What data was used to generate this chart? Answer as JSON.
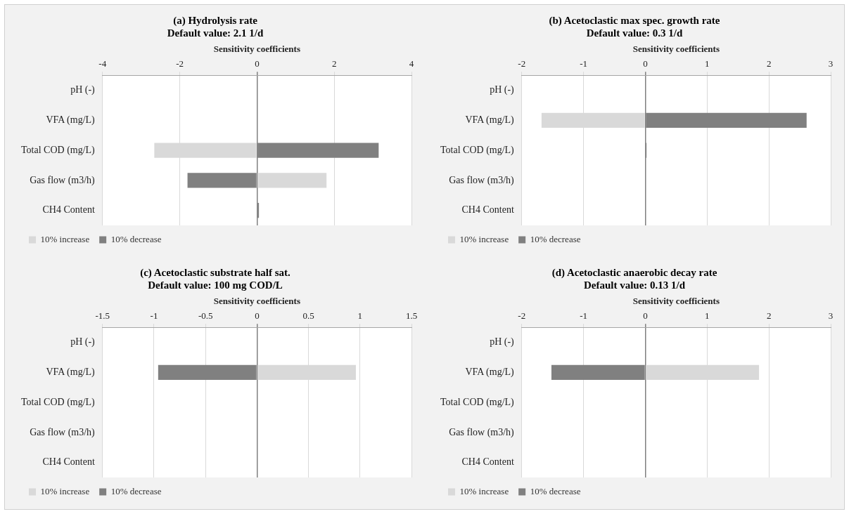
{
  "chart_data": [
    {
      "type": "bar",
      "orientation": "horizontal",
      "title": "(a) Hydrolysis rate",
      "subtitle": "Default value: 2.1 1/d",
      "xlabel": "Sensitivity coefficients",
      "categories": [
        "pH (-)",
        "VFA (mg/L)",
        "Total COD (mg/L)",
        "Gas flow (m3/h)",
        "CH4 Content"
      ],
      "xlim": [
        -4,
        4
      ],
      "xticks": [
        -4,
        -2,
        0,
        2,
        4
      ],
      "grid": "x",
      "legend": "bottom",
      "series": [
        {
          "name": "10% increase",
          "color": "#d9d9d9",
          "values": [
            0,
            0,
            -2.66,
            1.8,
            0
          ]
        },
        {
          "name": "10% decrease",
          "color": "#808080",
          "values": [
            0,
            0,
            3.15,
            -1.8,
            0.05
          ]
        }
      ]
    },
    {
      "type": "bar",
      "orientation": "horizontal",
      "title": "(b) Acetoclastic max spec. growth rate",
      "subtitle": "Default value: 0.3 1/d",
      "xlabel": "Sensitivity coefficients",
      "categories": [
        "pH (-)",
        "VFA (mg/L)",
        "Total COD (mg/L)",
        "Gas flow (m3/h)",
        "CH4 Content"
      ],
      "xlim": [
        -2,
        3
      ],
      "xticks": [
        -2,
        -1,
        0,
        1,
        2,
        3
      ],
      "grid": "x",
      "legend": "bottom",
      "series": [
        {
          "name": "10% increase",
          "color": "#d9d9d9",
          "values": [
            0,
            -1.68,
            0,
            0,
            0
          ]
        },
        {
          "name": "10% decrease",
          "color": "#808080",
          "values": [
            0,
            2.61,
            0.02,
            0,
            0
          ]
        }
      ]
    },
    {
      "type": "bar",
      "orientation": "horizontal",
      "title": "(c) Acetoclastic substrate half sat.",
      "subtitle": "Default value: 100 mg COD/L",
      "xlabel": "Sensitivity coefficients",
      "categories": [
        "pH (-)",
        "VFA (mg/L)",
        "Total COD (mg/L)",
        "Gas flow (m3/h)",
        "CH4 Content"
      ],
      "xlim": [
        -1.5,
        1.5
      ],
      "xticks": [
        -1.5,
        -1,
        -0.5,
        0,
        0.5,
        1,
        1.5
      ],
      "grid": "x",
      "legend": "bottom",
      "series": [
        {
          "name": "10% increase",
          "color": "#d9d9d9",
          "values": [
            0,
            0.96,
            0,
            0,
            0
          ]
        },
        {
          "name": "10% decrease",
          "color": "#808080",
          "values": [
            0,
            -0.96,
            0,
            0,
            0
          ]
        }
      ]
    },
    {
      "type": "bar",
      "orientation": "horizontal",
      "title": "(d) Acetoclastic anaerobic decay rate",
      "subtitle": "Default value: 0.13 1/d",
      "xlabel": "Sensitivity coefficients",
      "categories": [
        "pH (-)",
        "VFA (mg/L)",
        "Total COD (mg/L)",
        "Gas flow (m3/h)",
        "CH4 Content"
      ],
      "xlim": [
        -2,
        3
      ],
      "xticks": [
        -2,
        -1,
        0,
        1,
        2,
        3
      ],
      "grid": "x",
      "legend": "bottom",
      "series": [
        {
          "name": "10% increase",
          "color": "#d9d9d9",
          "values": [
            0,
            1.84,
            0,
            0,
            0
          ]
        },
        {
          "name": "10% decrease",
          "color": "#808080",
          "values": [
            0,
            -1.52,
            0,
            0,
            0
          ]
        }
      ]
    }
  ]
}
